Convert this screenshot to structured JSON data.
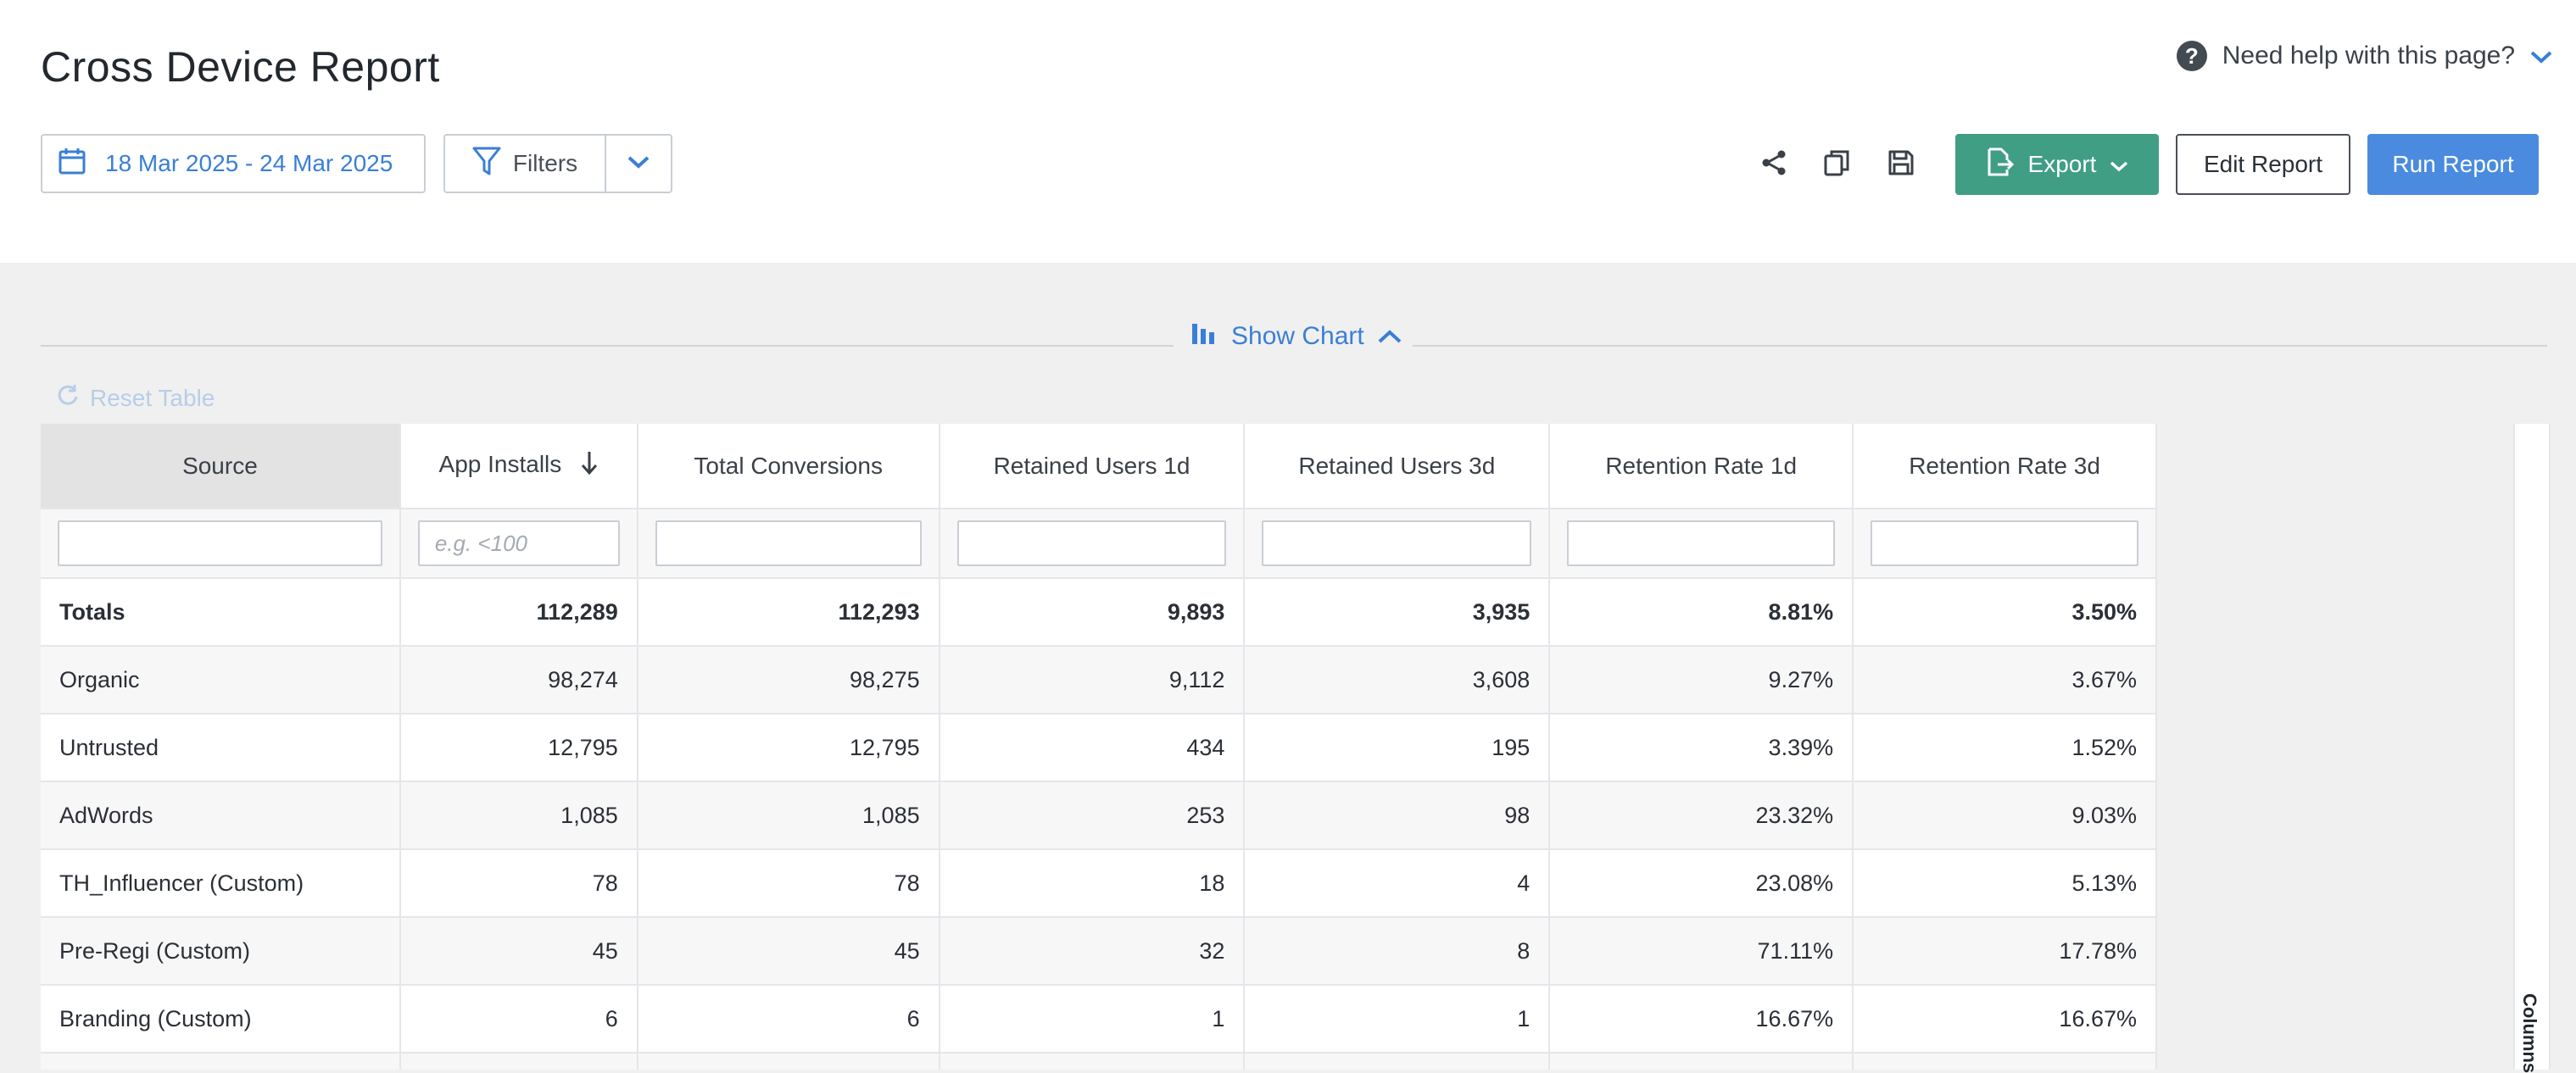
{
  "header": {
    "title": "Cross Device Report",
    "help_text": "Need help with this page?",
    "date_range": "18 Mar 2025 - 24 Mar 2025",
    "filters_label": "Filters",
    "export_label": "Export",
    "edit_label": "Edit Report",
    "run_label": "Run Report"
  },
  "chart_toggle": {
    "label": "Show Chart"
  },
  "reset_label": "Reset Table",
  "columns_label": "Columns",
  "colors": {
    "accent": "#4a8bdf",
    "export": "#3f9e84",
    "link": "#3a7fd6"
  },
  "table": {
    "headers": [
      "Source",
      "App Installs",
      "Total Conversions",
      "Retained Users 1d",
      "Retained Users 3d",
      "Retention Rate 1d",
      "Retention Rate 3d"
    ],
    "sorted_column": "App Installs",
    "sort_direction": "descending",
    "filter_placeholders": [
      "",
      "e.g. <100",
      "",
      "",
      "",
      "",
      ""
    ],
    "totals": [
      "Totals",
      "112,289",
      "112,293",
      "9,893",
      "3,935",
      "8.81%",
      "3.50%"
    ],
    "rows": [
      [
        "Organic",
        "98,274",
        "98,275",
        "9,112",
        "3,608",
        "9.27%",
        "3.67%"
      ],
      [
        "Untrusted",
        "12,795",
        "12,795",
        "434",
        "195",
        "3.39%",
        "1.52%"
      ],
      [
        "AdWords",
        "1,085",
        "1,085",
        "253",
        "98",
        "23.32%",
        "9.03%"
      ],
      [
        "TH_Influencer (Custom)",
        "78",
        "78",
        "18",
        "4",
        "23.08%",
        "5.13%"
      ],
      [
        "Pre-Regi (Custom)",
        "45",
        "45",
        "32",
        "8",
        "71.11%",
        "17.78%"
      ],
      [
        "Branding (Custom)",
        "6",
        "6",
        "1",
        "1",
        "16.67%",
        "16.67%"
      ],
      [
        "",
        "",
        "",
        "",
        "",
        "",
        ""
      ]
    ]
  }
}
